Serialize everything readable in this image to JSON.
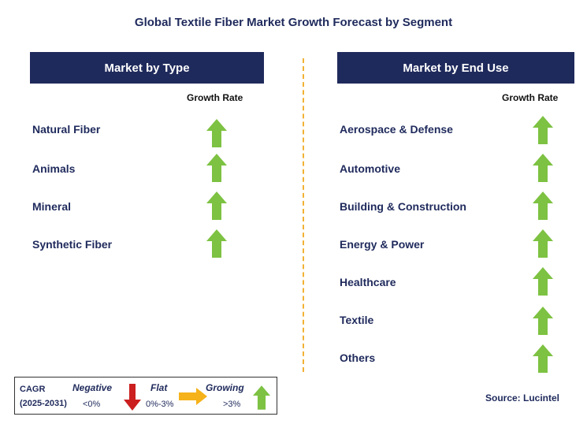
{
  "title": "Global Textile Fiber Market Growth Forecast by Segment",
  "left_panel": {
    "header": "Market by Type",
    "growth_label": "Growth Rate",
    "rows": [
      {
        "label": "Natural Fiber",
        "trend": "growing"
      },
      {
        "label": "Animals",
        "trend": "growing"
      },
      {
        "label": "Mineral",
        "trend": "growing"
      },
      {
        "label": "Synthetic Fiber",
        "trend": "growing"
      }
    ]
  },
  "right_panel": {
    "header": "Market by End Use",
    "growth_label": "Growth Rate",
    "rows": [
      {
        "label": "Aerospace & Defense",
        "trend": "growing"
      },
      {
        "label": "Automotive",
        "trend": "growing"
      },
      {
        "label": "Building & Construction",
        "trend": "growing"
      },
      {
        "label": "Energy & Power",
        "trend": "growing"
      },
      {
        "label": "Healthcare",
        "trend": "growing"
      },
      {
        "label": "Textile",
        "trend": "growing"
      },
      {
        "label": "Others",
        "trend": "growing"
      }
    ]
  },
  "legend": {
    "cagr_label": "CAGR",
    "period": "(2025-2031)",
    "negative_label": "Negative",
    "negative_range": "<0%",
    "flat_label": "Flat",
    "flat_range": "0%-3%",
    "growing_label": "Growing",
    "growing_range": ">3%"
  },
  "source": "Source: Lucintel",
  "colors": {
    "navy": "#1f2a5c",
    "growing": "#7dc242",
    "negative": "#cc1f1f",
    "flat": "#f5b21a",
    "divider": "#f2b134"
  }
}
